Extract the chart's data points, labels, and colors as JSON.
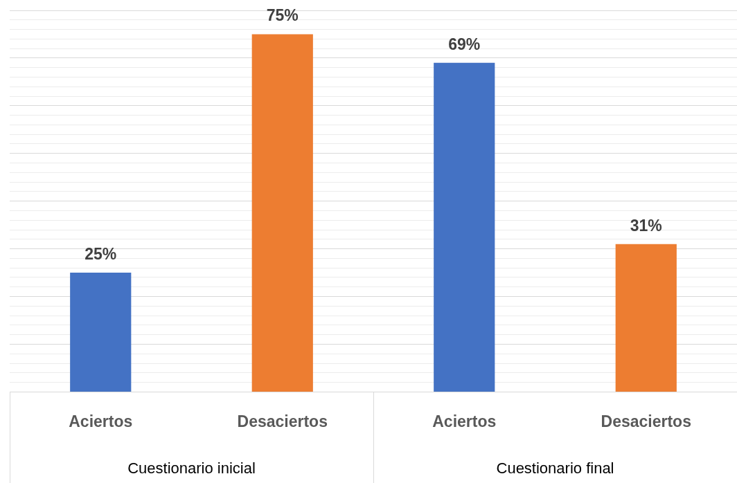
{
  "chart_data": {
    "type": "bar",
    "categories": [
      "Aciertos",
      "Desaciertos",
      "Aciertos",
      "Desaciertos"
    ],
    "values": [
      25,
      75,
      69,
      31
    ],
    "colors": [
      "#4472c4",
      "#ed7d31",
      "#4472c4",
      "#ed7d31"
    ],
    "value_labels": [
      "25%",
      "75%",
      "69%",
      "31%"
    ],
    "annotations": [
      "Cuestionario inicial",
      "Cuestionario final"
    ],
    "ylim": [
      0,
      80
    ],
    "yticks": [
      {
        "value": 0,
        "label": null
      },
      {
        "value": 2,
        "label": null
      },
      {
        "value": 4,
        "label": null
      },
      {
        "value": 6,
        "label": null
      },
      {
        "value": 8,
        "label": null
      },
      {
        "value": 10,
        "label": null
      },
      {
        "value": 12,
        "label": null
      },
      {
        "value": 14,
        "label": null
      },
      {
        "value": 16,
        "label": null
      },
      {
        "value": 18,
        "label": null
      },
      {
        "value": 20,
        "label": null
      },
      {
        "value": 22,
        "label": null
      },
      {
        "value": 24,
        "label": null
      },
      {
        "value": 26,
        "label": null
      },
      {
        "value": 28,
        "label": null
      },
      {
        "value": 30,
        "label": null
      },
      {
        "value": 32,
        "label": null
      },
      {
        "value": 34,
        "label": null
      },
      {
        "value": 36,
        "label": null
      },
      {
        "value": 38,
        "label": null
      },
      {
        "value": 40,
        "label": null
      },
      {
        "value": 42,
        "label": null
      },
      {
        "value": 44,
        "label": null
      },
      {
        "value": 46,
        "label": null
      },
      {
        "value": 48,
        "label": null
      },
      {
        "value": 50,
        "label": null
      },
      {
        "value": 52,
        "label": null
      },
      {
        "value": 54,
        "label": null
      },
      {
        "value": 56,
        "label": null
      },
      {
        "value": 58,
        "label": null
      },
      {
        "value": 60,
        "label": null
      },
      {
        "value": 62,
        "label": null
      },
      {
        "value": 64,
        "label": null
      },
      {
        "value": 66,
        "label": null
      },
      {
        "value": 68,
        "label": null
      },
      {
        "value": 70,
        "label": null
      },
      {
        "value": 72,
        "label": null
      },
      {
        "value": 74,
        "label": null
      },
      {
        "value": 76,
        "label": null
      },
      {
        "value": 78,
        "label": null
      },
      {
        "value": 80,
        "label": null
      }
    ],
    "grid": "y",
    "tick_labels": "x"
  }
}
